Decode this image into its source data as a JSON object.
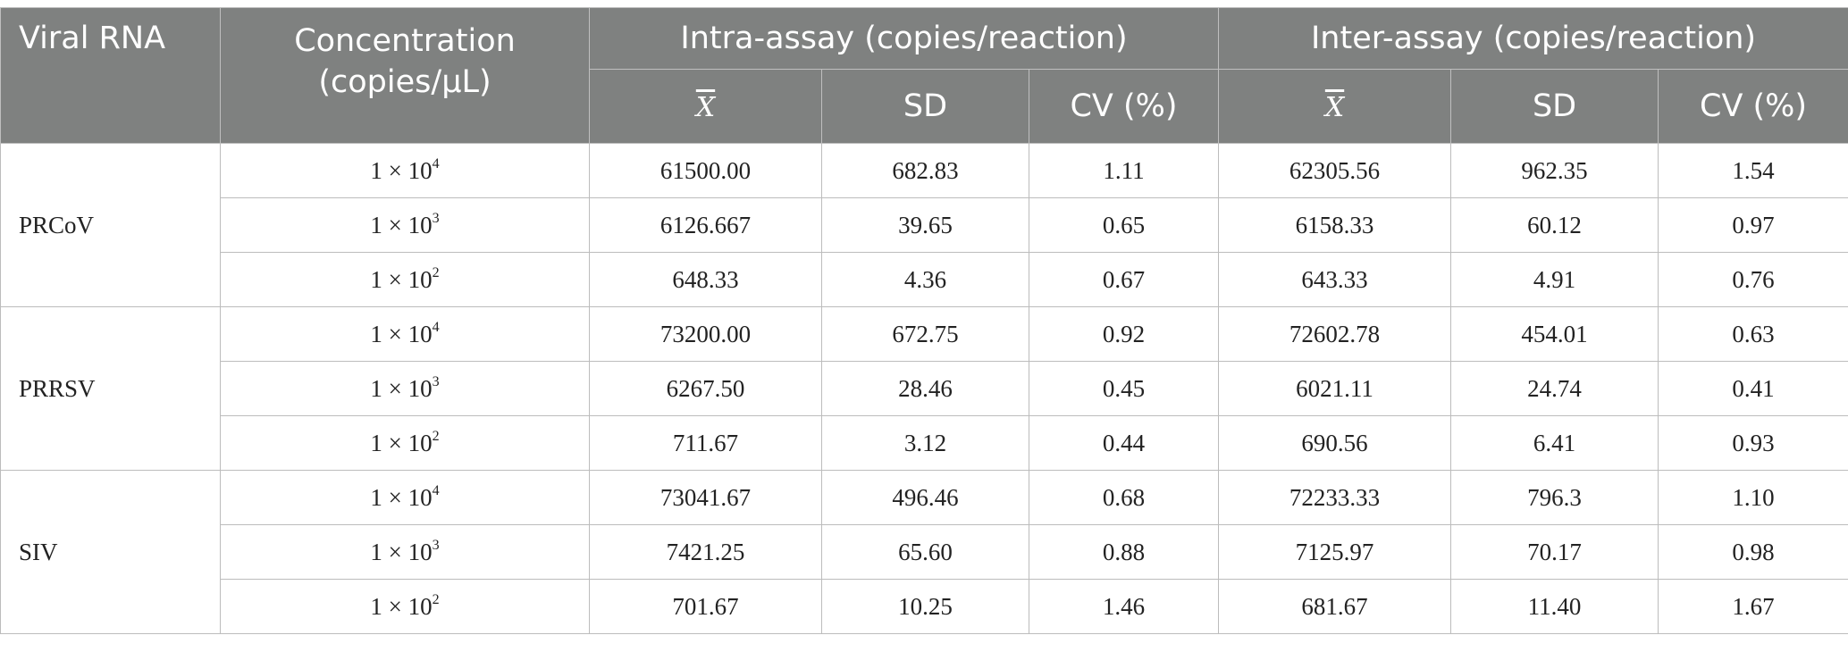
{
  "headers": {
    "viral_rna": "Viral RNA",
    "concentration_line1": "Concentration",
    "concentration_line2": "(copies/μL)",
    "intra": "Intra-assay (copies/reaction)",
    "inter": "Inter-assay (copies/reaction)",
    "mean": "X",
    "sd": "SD",
    "cv": "CV (%)"
  },
  "conc_prefix": "1 × 10",
  "groups": [
    {
      "virus": "PRCoV",
      "rows": [
        {
          "exp": "4",
          "intra_mean": "61500.00",
          "intra_sd": "682.83",
          "intra_cv": "1.11",
          "inter_mean": "62305.56",
          "inter_sd": "962.35",
          "inter_cv": "1.54"
        },
        {
          "exp": "3",
          "intra_mean": "6126.667",
          "intra_sd": "39.65",
          "intra_cv": "0.65",
          "inter_mean": "6158.33",
          "inter_sd": "60.12",
          "inter_cv": "0.97"
        },
        {
          "exp": "2",
          "intra_mean": "648.33",
          "intra_sd": "4.36",
          "intra_cv": "0.67",
          "inter_mean": "643.33",
          "inter_sd": "4.91",
          "inter_cv": "0.76"
        }
      ]
    },
    {
      "virus": "PRRSV",
      "rows": [
        {
          "exp": "4",
          "intra_mean": "73200.00",
          "intra_sd": "672.75",
          "intra_cv": "0.92",
          "inter_mean": "72602.78",
          "inter_sd": "454.01",
          "inter_cv": "0.63"
        },
        {
          "exp": "3",
          "intra_mean": "6267.50",
          "intra_sd": "28.46",
          "intra_cv": "0.45",
          "inter_mean": "6021.11",
          "inter_sd": "24.74",
          "inter_cv": "0.41"
        },
        {
          "exp": "2",
          "intra_mean": "711.67",
          "intra_sd": "3.12",
          "intra_cv": "0.44",
          "inter_mean": "690.56",
          "inter_sd": "6.41",
          "inter_cv": "0.93"
        }
      ]
    },
    {
      "virus": "SIV",
      "rows": [
        {
          "exp": "4",
          "intra_mean": "73041.67",
          "intra_sd": "496.46",
          "intra_cv": "0.68",
          "inter_mean": "72233.33",
          "inter_sd": "796.3",
          "inter_cv": "1.10"
        },
        {
          "exp": "3",
          "intra_mean": "7421.25",
          "intra_sd": "65.60",
          "intra_cv": "0.88",
          "inter_mean": "7125.97",
          "inter_sd": "70.17",
          "inter_cv": "0.98"
        },
        {
          "exp": "2",
          "intra_mean": "701.67",
          "intra_sd": "10.25",
          "intra_cv": "1.46",
          "inter_mean": "681.67",
          "inter_sd": "11.40",
          "inter_cv": "1.67"
        }
      ]
    }
  ]
}
